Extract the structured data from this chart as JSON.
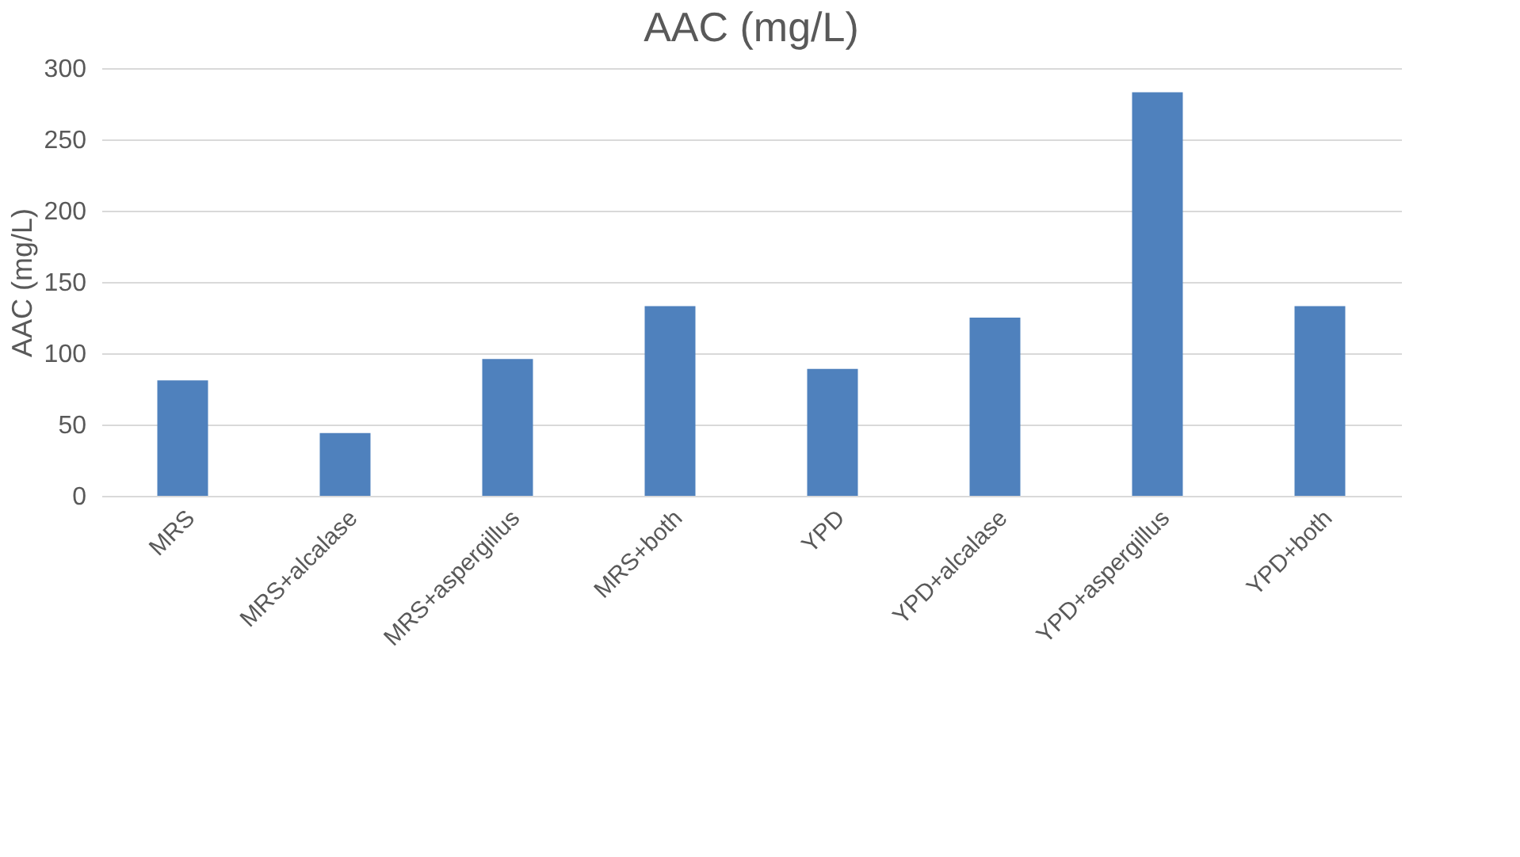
{
  "chart_data": {
    "type": "bar",
    "title": "AAC (mg/L)",
    "ylabel": "AAC (mg/L)",
    "categories": [
      "MRS",
      "MRS+alcalase",
      "MRS+aspergillus",
      "MRS+both",
      "YPD",
      "YPD+alcalase",
      "YPD+aspergillus",
      "YPD+both"
    ],
    "values": [
      81,
      44,
      96,
      133,
      89,
      125,
      283,
      133
    ],
    "color": "#4f81bd",
    "ylim": [
      0,
      300
    ],
    "yticks": [
      0,
      50,
      100,
      150,
      200,
      250,
      300
    ],
    "grid": "y"
  }
}
